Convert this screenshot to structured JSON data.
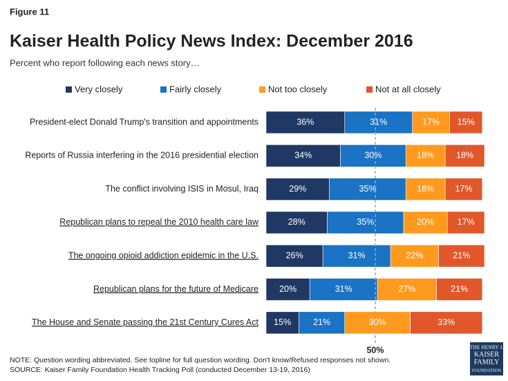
{
  "figure_label": "Figure 11",
  "chart_data": {
    "type": "stacked-bar-horizontal",
    "title": "Kaiser Health Policy News Index: December 2016",
    "subtitle": "Percent who report following each news story…",
    "categories": [
      "President-elect Donald Trump's transition and appointments",
      "Reports of Russia interfering in the 2016 presidential election",
      "The conflict involving ISIS in Mosul, Iraq",
      "Republican plans to repeal the 2010 health care law",
      "The ongoing opioid addiction epidemic in the U.S.",
      "Republican plans for the future of Medicare",
      "The House and Senate passing the 21st Century Cures Act"
    ],
    "underline": [
      false,
      false,
      false,
      true,
      true,
      true,
      true
    ],
    "series": [
      {
        "name": "Very closely",
        "color": "#203864",
        "values": [
          36,
          34,
          29,
          28,
          26,
          20,
          15
        ],
        "value_labels": [
          "36%",
          "34%",
          "29%",
          "28%",
          "26%",
          "20%",
          "15%"
        ]
      },
      {
        "name": "Fairly closely",
        "color": "#1a73c4",
        "values": [
          31,
          30,
          35,
          35,
          31,
          31,
          21
        ],
        "value_labels": [
          "31%",
          "30%",
          "35%",
          "35%",
          "31%",
          "31%",
          "21%"
        ]
      },
      {
        "name": "Not too closely",
        "color": "#ff9a1f",
        "values": [
          17,
          18,
          18,
          20,
          22,
          27,
          30
        ],
        "value_labels": [
          "17%",
          "18%",
          "18%",
          "20%",
          "22%",
          "27%",
          "30%"
        ]
      },
      {
        "name": "Not at all closely",
        "color": "#e2572a",
        "values": [
          15,
          18,
          17,
          17,
          21,
          21,
          33
        ],
        "value_labels": [
          "15%",
          "18%",
          "17%",
          "17%",
          "21%",
          "21%",
          "33%"
        ]
      }
    ],
    "xlim": [
      0,
      100
    ],
    "reference_line": {
      "value": 50,
      "label": "50%"
    }
  },
  "notes": [
    "NOTE: Question wording abbreviated. See topline for full question wording. Don't know/Refused responses not shown.",
    "SOURCE: Kaiser Family Foundation Health Tracking Poll (conducted December 13-19, 2016)"
  ],
  "logo": [
    "THE HENRY J.",
    "KAISER",
    "FAMILY",
    "FOUNDATION"
  ]
}
